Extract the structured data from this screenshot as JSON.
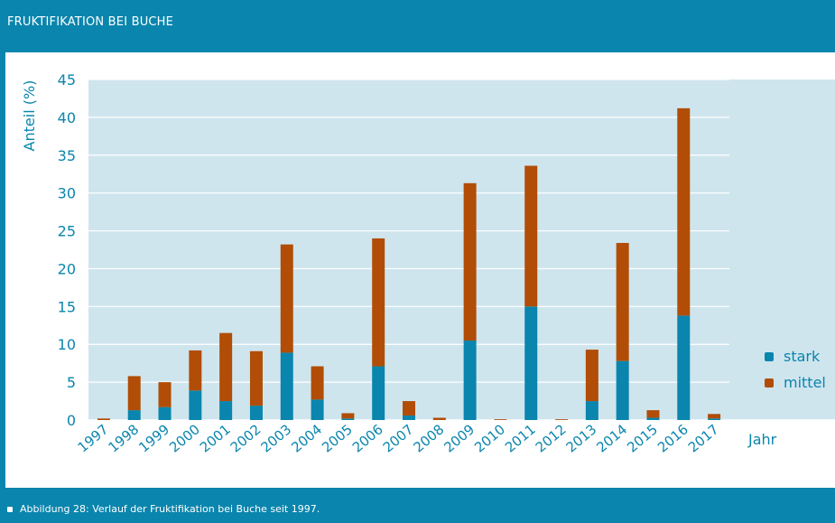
{
  "header": {
    "title": "FRUKTIFIKATION BEI BUCHE"
  },
  "caption": {
    "text": "Abbildung 28: Verlauf der Fruktifikation bei Buche seit 1997."
  },
  "colors": {
    "stark": "#0a85ad",
    "mittel": "#b14d06",
    "plot_bg": "#cfe5ee",
    "grid": "#ffffff",
    "text_blue": "#0a85ad",
    "axis_text": "#0a85ad"
  },
  "chart_data": {
    "type": "bar",
    "stacked": true,
    "title": "",
    "xlabel": "Jahr",
    "ylabel": "Anteil (%)",
    "ylim": [
      0,
      45
    ],
    "yticks": [
      0,
      5,
      10,
      15,
      20,
      25,
      30,
      35,
      40,
      45
    ],
    "grid": true,
    "legend_position": "right",
    "categories": [
      "1997",
      "1998",
      "1999",
      "2000",
      "2001",
      "2002",
      "2003",
      "2004",
      "2005",
      "2006",
      "2007",
      "2008",
      "2009",
      "2010",
      "2011",
      "2012",
      "2013",
      "2014",
      "2015",
      "2016",
      "2017"
    ],
    "series": [
      {
        "name": "stark",
        "values": [
          0,
          1.3,
          1.7,
          3.9,
          2.5,
          1.9,
          8.9,
          2.7,
          0.2,
          7.1,
          0.6,
          0,
          10.5,
          0,
          15.0,
          0,
          2.5,
          7.8,
          0.3,
          13.8,
          0.2
        ]
      },
      {
        "name": "mittel",
        "values": [
          0.2,
          4.5,
          3.3,
          5.3,
          9.0,
          7.2,
          14.3,
          4.4,
          0.7,
          16.9,
          1.9,
          0.3,
          20.8,
          0.1,
          18.6,
          0.1,
          6.8,
          15.6,
          1.0,
          27.4,
          0.6
        ]
      }
    ]
  }
}
